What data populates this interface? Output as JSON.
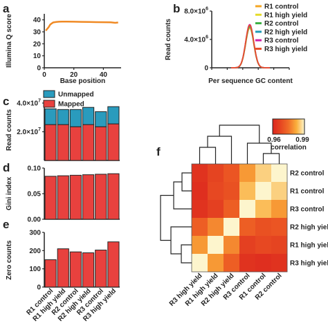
{
  "panel_labels": [
    "a",
    "b",
    "c",
    "d",
    "e",
    "f"
  ],
  "chart_data": [
    {
      "panel": "a",
      "type": "line",
      "xlabel": "Base position",
      "ylabel": "Illumina Q score",
      "xlim": [
        0,
        52
      ],
      "ylim": [
        0,
        45
      ],
      "xticks": [
        0,
        20,
        40
      ],
      "yticks": [
        0,
        10,
        20,
        30,
        40
      ],
      "color": "#f08a24",
      "x": [
        1,
        2,
        3,
        4,
        5,
        6,
        8,
        10,
        12,
        15,
        20,
        25,
        30,
        35,
        40,
        45,
        48,
        50
      ],
      "y": [
        31,
        32.5,
        34,
        36,
        37,
        37.8,
        38.2,
        38.4,
        38.5,
        38.5,
        38.4,
        38.3,
        38.2,
        38.1,
        38,
        37.9,
        37.5,
        37.8
      ]
    },
    {
      "panel": "b",
      "type": "line",
      "xlabel": "Per sequence GC content",
      "ylabel": "Read counts",
      "xlim": [
        0,
        100
      ],
      "ylim": [
        0,
        8000000
      ],
      "xticks": [
        0,
        20,
        40,
        60,
        80,
        100
      ],
      "yticks": [
        {
          "value": 0,
          "base": "0",
          "exp": ""
        },
        {
          "value": 4000000,
          "base": "4.0×10",
          "exp": "6"
        },
        {
          "value": 8000000,
          "base": "8.0×10",
          "exp": "6"
        }
      ],
      "series": [
        {
          "name": "R1 control",
          "color": "#f5a623",
          "peak": 5600000
        },
        {
          "name": "R1 high yield",
          "color": "#e5dc2a",
          "peak": 5700000
        },
        {
          "name": "R2 control",
          "color": "#3cb043",
          "peak": 5800000
        },
        {
          "name": "R2 high yield",
          "color": "#1f9bb5",
          "peak": 5900000
        },
        {
          "name": "R3 control",
          "color": "#d020a8",
          "peak": 6100000
        },
        {
          "name": "R3 high yield",
          "color": "#e8502a",
          "peak": 6000000
        }
      ],
      "center": 49,
      "width": 5.2
    },
    {
      "panel": "c",
      "type": "bar",
      "stacked": true,
      "ylabel": "Read counts",
      "ylim": [
        0,
        40000000
      ],
      "yticks": [
        {
          "value": 20000000,
          "base": "2.0×10",
          "exp": "7"
        },
        {
          "value": 40000000,
          "base": "4.0×10",
          "exp": "7"
        }
      ],
      "legend_position": "top",
      "series": [
        {
          "name": "Mapped",
          "color": "#e8413e",
          "values": [
            25000000,
            25000000,
            23500000,
            25000000,
            23500000,
            25500000
          ]
        },
        {
          "name": "Unmapped",
          "color": "#2a9bbd",
          "values": [
            11000000,
            10500000,
            12000000,
            12000000,
            10500000,
            12000000
          ]
        }
      ]
    },
    {
      "panel": "d",
      "type": "bar",
      "ylabel": "Gini index",
      "ylim": [
        0,
        0.1
      ],
      "yticks": [
        {
          "value": 0,
          "label": "0.00"
        },
        {
          "value": 0.05,
          "label": "0.05"
        },
        {
          "value": 0.1,
          "label": "0.10"
        }
      ],
      "color": "#e8413e",
      "values": [
        0.084,
        0.085,
        0.086,
        0.087,
        0.088,
        0.089
      ]
    },
    {
      "panel": "e",
      "type": "bar",
      "ylabel": "Zero counts",
      "ylim": [
        0,
        300
      ],
      "yticks": [
        {
          "value": 0,
          "label": "0"
        },
        {
          "value": 100,
          "label": "100"
        },
        {
          "value": 200,
          "label": "200"
        },
        {
          "value": 300,
          "label": "300"
        }
      ],
      "color": "#e8413e",
      "categories": [
        "R1 control",
        "R1 high yield",
        "R2 control",
        "R2 high yield",
        "R3 control",
        "R3 high yield"
      ],
      "values": [
        150,
        210,
        193,
        188,
        203,
        248
      ]
    },
    {
      "panel": "f",
      "type": "heatmap",
      "row_labels": [
        "R2 control",
        "R1 control",
        "R3 control",
        "R2 high yield",
        "R1 high yield",
        "R3 high yield"
      ],
      "col_labels": [
        "R3 high yield",
        "R1 high yield",
        "R2 high yield",
        "R3 control",
        "R1 control",
        "R2 control"
      ],
      "colorbar_range": [
        0.96,
        0.99
      ],
      "colorbar_ticks": [
        "0.96",
        "0.99"
      ],
      "colorbar_label": "correlation",
      "values": [
        [
          0.963,
          0.967,
          0.971,
          0.98,
          0.986,
          1.0
        ],
        [
          0.962,
          0.968,
          0.97,
          0.984,
          1.0,
          0.986
        ],
        [
          0.963,
          0.966,
          0.973,
          1.0,
          0.984,
          0.98
        ],
        [
          0.973,
          0.978,
          1.0,
          0.973,
          0.97,
          0.971
        ],
        [
          0.98,
          1.0,
          0.978,
          0.966,
          0.968,
          0.967
        ],
        [
          1.0,
          0.98,
          0.973,
          0.963,
          0.962,
          0.963
        ]
      ]
    }
  ]
}
